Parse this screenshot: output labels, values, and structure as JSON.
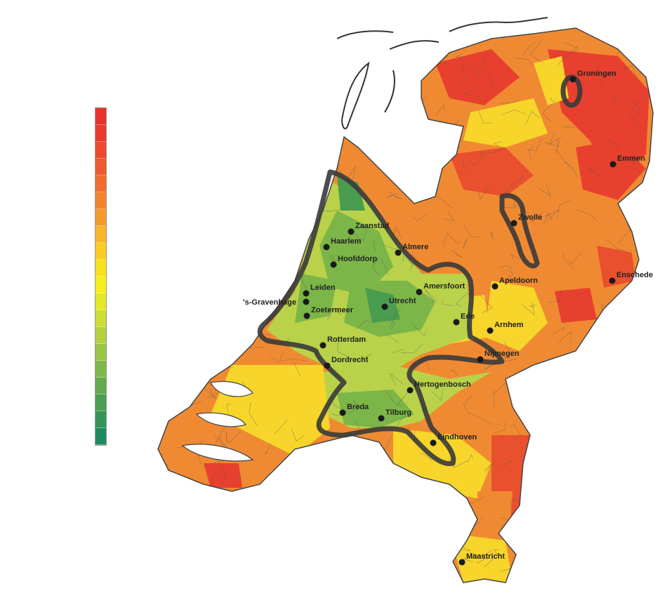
{
  "legend": {
    "colors": [
      "#e8322c",
      "#ea3b2d",
      "#ec4a2f",
      "#ee5a30",
      "#f06d31",
      "#f3832f",
      "#f59a2c",
      "#f7b52a",
      "#f8cc25",
      "#f8e11e",
      "#f5ee1d",
      "#e3e828",
      "#cddd35",
      "#b5d13f",
      "#9ac446",
      "#7fb84a",
      "#63aa4e",
      "#49a052",
      "#33955a",
      "#1f8a5f"
    ]
  },
  "palette": {
    "red": "#e8402e",
    "orange": "#f08a32",
    "yellow": "#f7d52a",
    "lightgreen": "#b9d24a",
    "green": "#7cb548",
    "darkgreen": "#4a9d4f",
    "outline": "#3a3a3a",
    "border": "#555555"
  },
  "cities": [
    {
      "name": "Groningen"
    },
    {
      "name": "Emmen"
    },
    {
      "name": "Zwolle"
    },
    {
      "name": "Zaanstad"
    },
    {
      "name": "Haarlem"
    },
    {
      "name": "Almere"
    },
    {
      "name": "Hoofddorp"
    },
    {
      "name": "Enschede"
    },
    {
      "name": "Apeldoorn"
    },
    {
      "name": "Amersfoort"
    },
    {
      "name": "Leiden"
    },
    {
      "name": "'s-Gravenhage"
    },
    {
      "name": "Zoetermeer"
    },
    {
      "name": "Utrecht"
    },
    {
      "name": "Ede"
    },
    {
      "name": "Arnhem"
    },
    {
      "name": "Rotterdam"
    },
    {
      "name": "Nijmegen"
    },
    {
      "name": "Dordrecht"
    },
    {
      "name": "Hertogenbosch"
    },
    {
      "name": "Breda"
    },
    {
      "name": "Tilburg"
    },
    {
      "name": "Eindhoven"
    },
    {
      "name": "Maastricht"
    }
  ]
}
